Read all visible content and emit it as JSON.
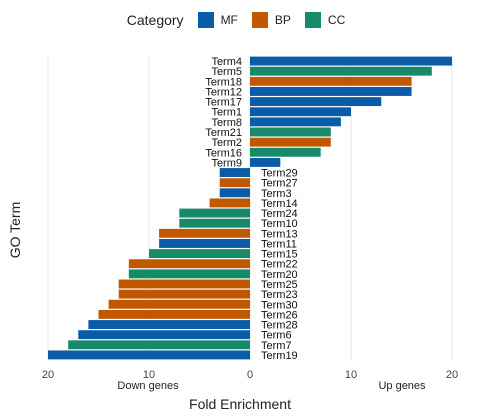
{
  "chart_data": {
    "type": "bar",
    "orientation": "horizontal-diverging",
    "legend_title": "Category",
    "legend_placement": "top",
    "legend": [
      {
        "name": "MF",
        "color": "#0a5ca8"
      },
      {
        "name": "BP",
        "color": "#c05800"
      },
      {
        "name": "CC",
        "color": "#178a6a"
      }
    ],
    "ylabel": "GO Term",
    "xlabel": "Fold Enrichment",
    "down_label": "Down genes",
    "up_label": "Up genes",
    "xlim": [
      -20,
      20
    ],
    "x_ticks": [
      {
        "value": -20,
        "label": "20"
      },
      {
        "value": -10,
        "label": "10"
      },
      {
        "value": 0,
        "label": "0"
      },
      {
        "value": 10,
        "label": "10"
      },
      {
        "value": 20,
        "label": "20"
      }
    ],
    "grid": "vertical",
    "bars": [
      {
        "term": "Term4",
        "value": 20,
        "category": "MF"
      },
      {
        "term": "Term5",
        "value": 18,
        "category": "CC"
      },
      {
        "term": "Term18",
        "value": 16,
        "category": "BP"
      },
      {
        "term": "Term12",
        "value": 16,
        "category": "MF"
      },
      {
        "term": "Term17",
        "value": 13,
        "category": "MF"
      },
      {
        "term": "Term1",
        "value": 10,
        "category": "MF"
      },
      {
        "term": "Term8",
        "value": 9,
        "category": "MF"
      },
      {
        "term": "Term21",
        "value": 8,
        "category": "CC"
      },
      {
        "term": "Term2",
        "value": 8,
        "category": "BP"
      },
      {
        "term": "Term16",
        "value": 7,
        "category": "CC"
      },
      {
        "term": "Term9",
        "value": 3,
        "category": "MF"
      },
      {
        "term": "Term29",
        "value": -3,
        "category": "MF"
      },
      {
        "term": "Term27",
        "value": -3,
        "category": "BP"
      },
      {
        "term": "Term3",
        "value": -3,
        "category": "MF"
      },
      {
        "term": "Term14",
        "value": -4,
        "category": "BP"
      },
      {
        "term": "Term24",
        "value": -7,
        "category": "CC"
      },
      {
        "term": "Term10",
        "value": -7,
        "category": "CC"
      },
      {
        "term": "Term13",
        "value": -9,
        "category": "BP"
      },
      {
        "term": "Term11",
        "value": -9,
        "category": "MF"
      },
      {
        "term": "Term15",
        "value": -10,
        "category": "CC"
      },
      {
        "term": "Term22",
        "value": -12,
        "category": "BP"
      },
      {
        "term": "Term20",
        "value": -12,
        "category": "CC"
      },
      {
        "term": "Term25",
        "value": -13,
        "category": "BP"
      },
      {
        "term": "Term23",
        "value": -13,
        "category": "BP"
      },
      {
        "term": "Term30",
        "value": -14,
        "category": "BP"
      },
      {
        "term": "Term26",
        "value": -15,
        "category": "BP"
      },
      {
        "term": "Term28",
        "value": -16,
        "category": "MF"
      },
      {
        "term": "Term6",
        "value": -17,
        "category": "MF"
      },
      {
        "term": "Term7",
        "value": -18,
        "category": "CC"
      },
      {
        "term": "Term19",
        "value": -20,
        "category": "MF"
      }
    ]
  }
}
